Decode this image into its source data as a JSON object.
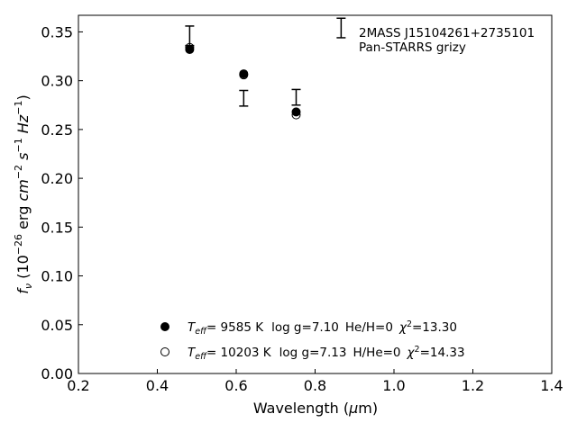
{
  "chart_data": {
    "type": "scatter",
    "xlabel": "Wavelength (μm)",
    "ylabel": "f_ν (10^-26 erg cm^-2 s^-1 Hz^-1)",
    "xlim": [
      0.2,
      1.4
    ],
    "ylim": [
      0.0,
      0.367
    ],
    "xticks": [
      0.2,
      0.4,
      0.6,
      0.8,
      1.0,
      1.2,
      1.4
    ],
    "xtick_labels": [
      "0.2",
      "0.4",
      "0.6",
      "0.8",
      "1.0",
      "1.2",
      "1.4"
    ],
    "yticks": [
      0.0,
      0.05,
      0.1,
      0.15,
      0.2,
      0.25,
      0.3,
      0.35
    ],
    "ytick_labels": [
      "0.00",
      "0.05",
      "0.10",
      "0.15",
      "0.20",
      "0.25",
      "0.30",
      "0.35"
    ],
    "grid": false,
    "annotation": {
      "object": "2MASS J15104261+2735101",
      "photometry": "Pan-STARRS grizy"
    },
    "observed": [
      {
        "x": 0.482,
        "y": 0.346,
        "yerr": 0.01
      },
      {
        "x": 0.619,
        "y": 0.282,
        "yerr": 0.008
      },
      {
        "x": 0.752,
        "y": 0.283,
        "yerr": 0.008
      },
      {
        "x": 0.866,
        "y": 0.354,
        "yerr": 0.01
      }
    ],
    "series": [
      {
        "name": "Teff= 9585 K log g=7.10 He/H=0 χ2=13.30",
        "marker": "filled-circle",
        "points": [
          {
            "x": 0.482,
            "y": 0.332
          },
          {
            "x": 0.619,
            "y": 0.307
          },
          {
            "x": 0.752,
            "y": 0.268
          }
        ],
        "legend": {
          "teff": "=  9585 K",
          "logg": "log g=7.10",
          "comp": "He/H=0",
          "chi": "=13.30"
        }
      },
      {
        "name": "Teff= 10203 K log g=7.13 H/He=0 χ2=14.33",
        "marker": "open-circle",
        "points": [
          {
            "x": 0.482,
            "y": 0.334
          },
          {
            "x": 0.619,
            "y": 0.306
          },
          {
            "x": 0.752,
            "y": 0.265
          }
        ],
        "legend": {
          "teff": "= 10203 K",
          "logg": "log g=7.13",
          "comp": "H/He=0",
          "chi": "=14.33"
        }
      }
    ]
  }
}
